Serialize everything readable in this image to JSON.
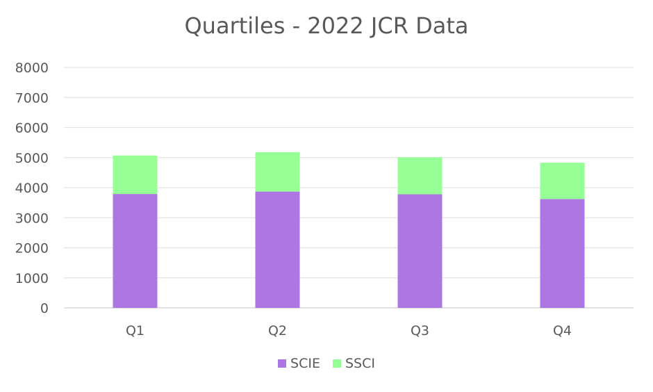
{
  "chart_data": {
    "type": "bar",
    "stacked": true,
    "title": "Quartiles - 2022 JCR Data",
    "categories": [
      "Q1",
      "Q2",
      "Q3",
      "Q4"
    ],
    "series": [
      {
        "name": "SCIE",
        "color": "#AD77E3",
        "values": [
          3790,
          3870,
          3780,
          3620
        ]
      },
      {
        "name": "SSCI",
        "color": "#96FF96",
        "values": [
          1280,
          1310,
          1230,
          1210
        ]
      }
    ],
    "ylim": [
      0,
      8000
    ],
    "yticks": [
      0,
      1000,
      2000,
      3000,
      4000,
      5000,
      6000,
      7000,
      8000
    ],
    "grid": true,
    "legend_position": "bottom"
  }
}
